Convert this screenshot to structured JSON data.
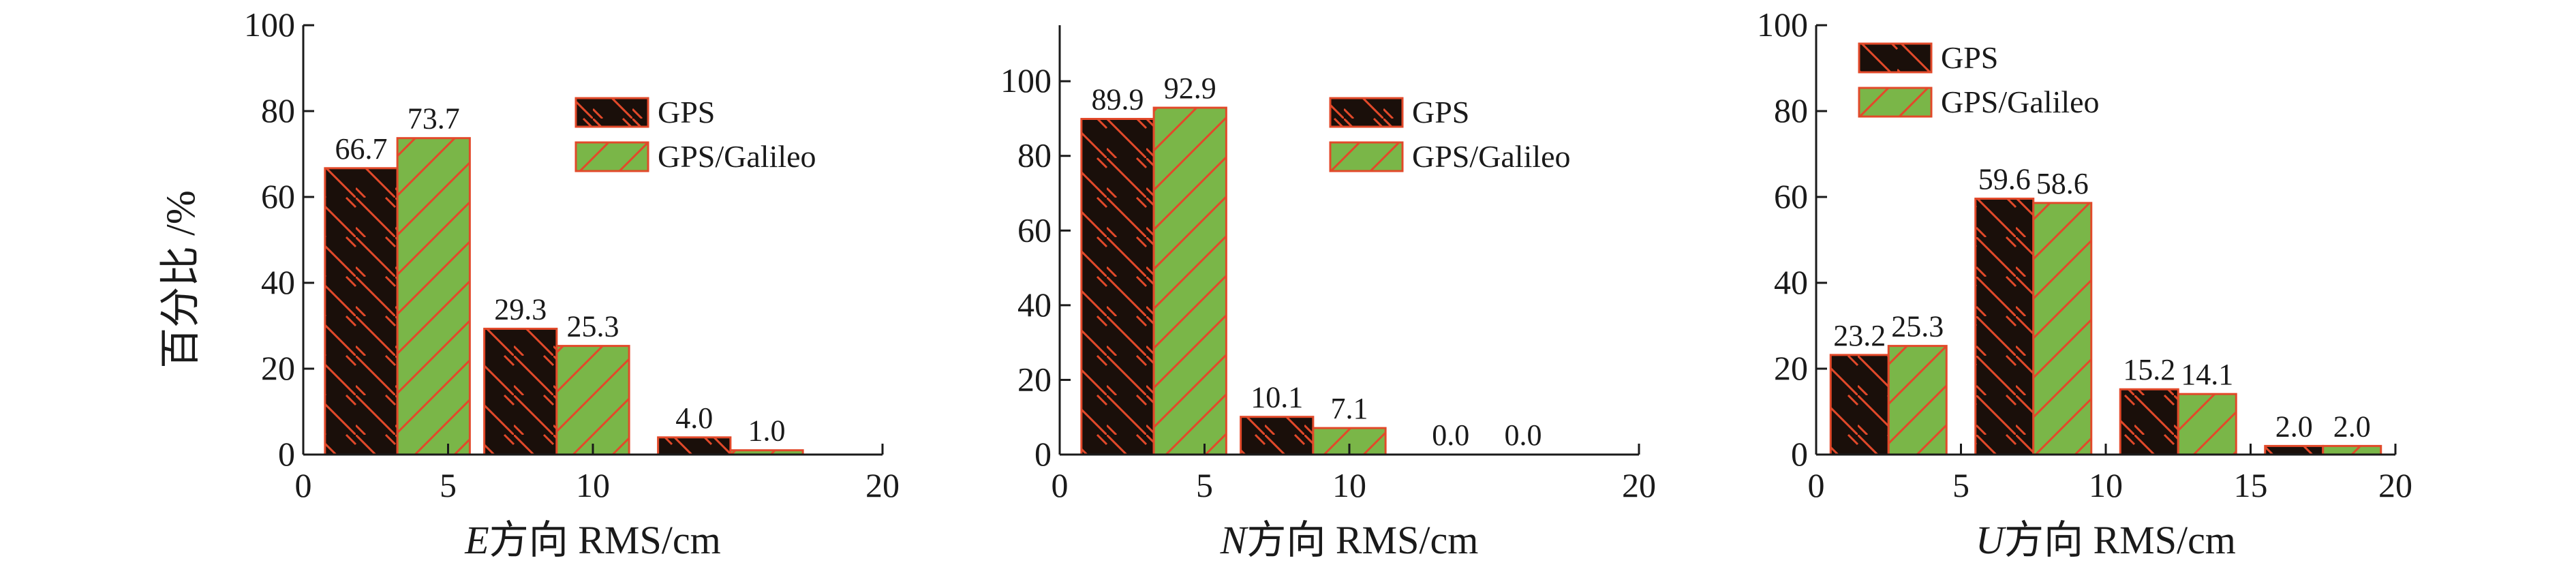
{
  "y_axis_label": "百分比 /%",
  "legend": {
    "gps": "GPS",
    "gps_galileo": "GPS/Galileo"
  },
  "colors": {
    "gps_fill": "#1a0f0a",
    "gps_galileo_fill": "#7ab648",
    "bar_outline": "#e2492a",
    "axis": "#1a1a1a"
  },
  "chart_data": [
    {
      "type": "bar",
      "axis_letter": "E",
      "axis_suffix": "方向 RMS/cm",
      "xlim": [
        0,
        20
      ],
      "ylim": [
        0,
        100
      ],
      "x_ticks": [
        "0",
        "5",
        "10",
        "20"
      ],
      "x_tick_values": [
        0,
        5,
        10,
        20
      ],
      "y_ticks": [
        "0",
        "20",
        "40",
        "60",
        "80",
        "100"
      ],
      "y_tick_values": [
        0,
        20,
        40,
        60,
        80,
        100
      ],
      "legend_position": "top-right",
      "groups": [
        {
          "x_start": 0.75,
          "x_mid": 3.25,
          "x_end": 5.75
        },
        {
          "x_start": 6.25,
          "x_mid": 8.75,
          "x_end": 11.25
        },
        {
          "x_start": 12.25,
          "x_mid": 14.75,
          "x_end": 17.25
        }
      ],
      "series": [
        {
          "name": "GPS",
          "values": [
            66.7,
            29.3,
            4.0
          ],
          "labels": [
            "66.7",
            "29.3",
            "4.0"
          ]
        },
        {
          "name": "GPS/Galileo",
          "values": [
            73.7,
            25.3,
            1.0
          ],
          "labels": [
            "73.7",
            "25.3",
            "1.0"
          ]
        }
      ]
    },
    {
      "type": "bar",
      "axis_letter": "N",
      "axis_suffix": "方向 RMS/cm",
      "xlim": [
        0,
        20
      ],
      "ylim": [
        0,
        115
      ],
      "x_ticks": [
        "0",
        "5",
        "10",
        "20"
      ],
      "x_tick_values": [
        0,
        5,
        10,
        20
      ],
      "y_ticks": [
        "0",
        "20",
        "40",
        "60",
        "80",
        "100"
      ],
      "y_tick_values": [
        0,
        20,
        40,
        60,
        80,
        100
      ],
      "legend_position": "top-right",
      "groups": [
        {
          "x_start": 0.75,
          "x_mid": 3.25,
          "x_end": 5.75
        },
        {
          "x_start": 6.25,
          "x_mid": 8.75,
          "x_end": 11.25
        },
        {
          "x_start": 12.25,
          "x_mid": 14.75,
          "x_end": 17.25
        }
      ],
      "series": [
        {
          "name": "GPS",
          "values": [
            89.9,
            10.1,
            0.0
          ],
          "labels": [
            "89.9",
            "10.1",
            "0.0"
          ]
        },
        {
          "name": "GPS/Galileo",
          "values": [
            92.9,
            7.1,
            0.0
          ],
          "labels": [
            "92.9",
            "7.1",
            "0.0"
          ]
        }
      ]
    },
    {
      "type": "bar",
      "axis_letter": "U",
      "axis_suffix": "方向 RMS/cm",
      "xlim": [
        0,
        20
      ],
      "ylim": [
        0,
        100
      ],
      "x_ticks": [
        "0",
        "5",
        "10",
        "15",
        "20"
      ],
      "x_tick_values": [
        0,
        5,
        10,
        15,
        20
      ],
      "y_ticks": [
        "0",
        "20",
        "40",
        "60",
        "80",
        "100"
      ],
      "y_tick_values": [
        0,
        20,
        40,
        60,
        80,
        100
      ],
      "legend_position": "top-left",
      "groups": [
        {
          "x_start": 0.5,
          "x_mid": 2.5,
          "x_end": 4.5
        },
        {
          "x_start": 5.5,
          "x_mid": 7.5,
          "x_end": 9.5
        },
        {
          "x_start": 10.5,
          "x_mid": 12.5,
          "x_end": 14.5
        },
        {
          "x_start": 15.5,
          "x_mid": 17.5,
          "x_end": 19.5
        }
      ],
      "series": [
        {
          "name": "GPS",
          "values": [
            23.2,
            59.6,
            15.2,
            2.0
          ],
          "labels": [
            "23.2",
            "59.6",
            "15.2",
            "2.0"
          ]
        },
        {
          "name": "GPS/Galileo",
          "values": [
            25.3,
            58.6,
            14.1,
            2.0
          ],
          "labels": [
            "25.3",
            "58.6",
            "14.1",
            "2.0"
          ]
        }
      ]
    }
  ]
}
